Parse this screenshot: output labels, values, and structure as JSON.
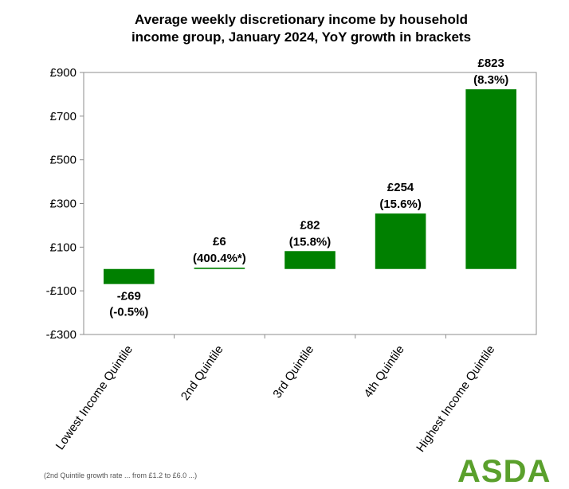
{
  "chart_data": {
    "type": "bar",
    "title_lines": [
      "Average weekly discretionary income by household",
      "income group, January 2024, YoY growth in brackets"
    ],
    "categories": [
      "Lowest Income Quintile",
      "2nd Quintile",
      "3rd Quintile",
      "4th Quintile",
      "Highest Income Quintile"
    ],
    "values": [
      -69,
      6,
      82,
      254,
      823
    ],
    "value_labels": [
      "-£69",
      "£6",
      "£82",
      "£254",
      "£823"
    ],
    "growth_labels": [
      "(-0.5%)",
      "(400.4%*)",
      "(15.8%)",
      "(15.6%)",
      "(8.3%)"
    ],
    "ylim": [
      -300,
      900
    ],
    "yticks": [
      -300,
      -100,
      100,
      300,
      500,
      700,
      900
    ],
    "ytick_labels": [
      "-£300",
      "-£100",
      "£100",
      "£300",
      "£500",
      "£700",
      "£900"
    ],
    "bar_color": "#008000",
    "grid": false,
    "xlabel": "",
    "ylabel": ""
  },
  "footnote": "(2nd Quintile growth rate ... from £1.2 to £6.0 ...)",
  "brand": {
    "logo_text": "ASDA",
    "color": "#5aa02c"
  }
}
